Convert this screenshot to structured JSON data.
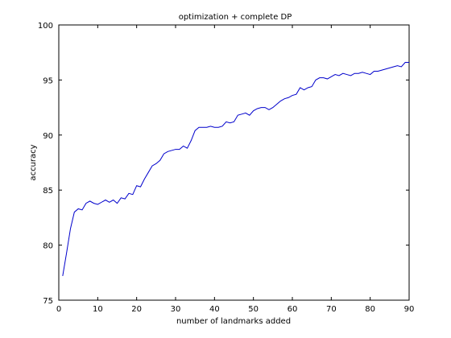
{
  "chart_data": {
    "type": "line",
    "title": "optimization + complete DP",
    "xlabel": "number of landmarks added",
    "ylabel": "accuracy",
    "xlim": [
      0,
      90
    ],
    "ylim": [
      75,
      100
    ],
    "xticks": [
      0,
      10,
      20,
      30,
      40,
      50,
      60,
      70,
      80,
      90
    ],
    "yticks": [
      75,
      80,
      85,
      90,
      95,
      100
    ],
    "grid": false,
    "series": [
      {
        "color": "#0000cc",
        "x": [
          1,
          2,
          3,
          4,
          5,
          6,
          7,
          8,
          9,
          10,
          11,
          12,
          13,
          14,
          15,
          16,
          17,
          18,
          19,
          20,
          21,
          22,
          23,
          24,
          25,
          26,
          27,
          28,
          29,
          30,
          31,
          32,
          33,
          34,
          35,
          36,
          37,
          38,
          39,
          40,
          41,
          42,
          43,
          44,
          45,
          46,
          47,
          48,
          49,
          50,
          51,
          52,
          53,
          54,
          55,
          56,
          57,
          58,
          59,
          60,
          61,
          62,
          63,
          64,
          65,
          66,
          67,
          68,
          69,
          70,
          71,
          72,
          73,
          74,
          75,
          76,
          77,
          78,
          79,
          80,
          81,
          82,
          83,
          84,
          85,
          86,
          87,
          88,
          89,
          90
        ],
        "y": [
          77.2,
          79.3,
          81.5,
          83.0,
          83.3,
          83.2,
          83.8,
          84.0,
          83.8,
          83.7,
          83.9,
          84.1,
          83.9,
          84.1,
          83.8,
          84.3,
          84.2,
          84.7,
          84.6,
          85.4,
          85.3,
          86.0,
          86.6,
          87.2,
          87.4,
          87.7,
          88.3,
          88.5,
          88.6,
          88.7,
          88.7,
          89.0,
          88.8,
          89.5,
          90.4,
          90.7,
          90.7,
          90.7,
          90.8,
          90.7,
          90.7,
          90.8,
          91.2,
          91.1,
          91.2,
          91.8,
          91.9,
          92.0,
          91.8,
          92.2,
          92.4,
          92.5,
          92.5,
          92.3,
          92.5,
          92.8,
          93.1,
          93.3,
          93.4,
          93.6,
          93.7,
          94.3,
          94.1,
          94.3,
          94.4,
          95.0,
          95.2,
          95.2,
          95.1,
          95.3,
          95.5,
          95.4,
          95.6,
          95.5,
          95.4,
          95.6,
          95.6,
          95.7,
          95.6,
          95.5,
          95.8,
          95.8,
          95.9,
          96.0,
          96.1,
          96.2,
          96.3,
          96.2,
          96.6,
          96.6
        ]
      }
    ]
  }
}
